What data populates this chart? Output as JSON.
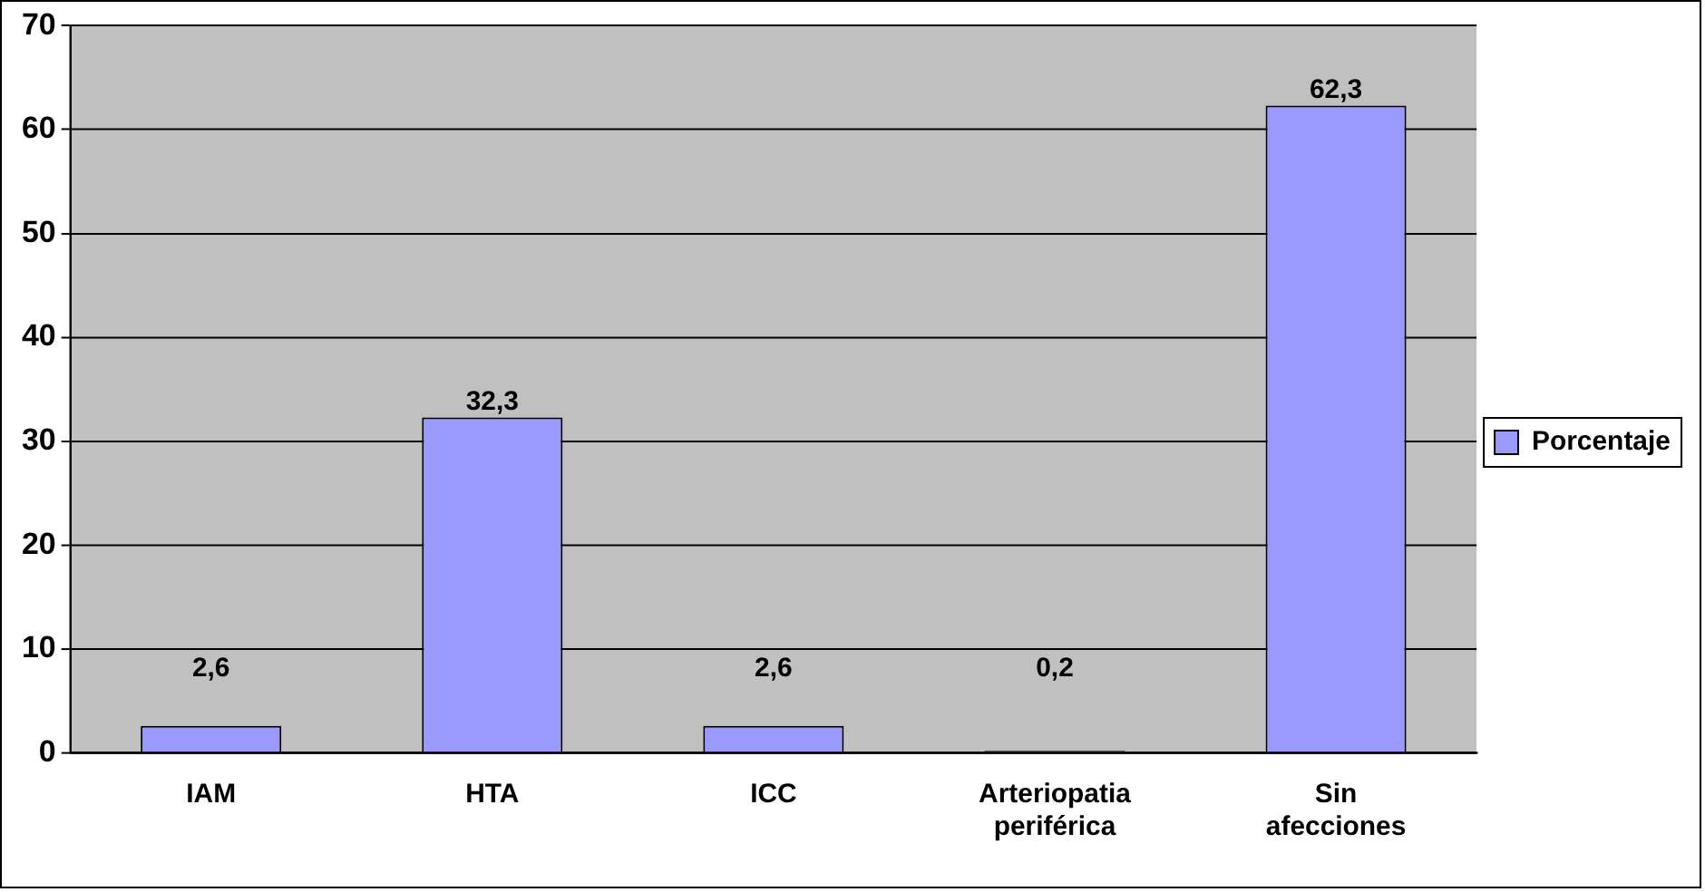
{
  "chart_data": {
    "type": "bar",
    "categories": [
      "IAM",
      "HTA",
      "ICC",
      "Arteriopatia periférica",
      "Sin afecciones"
    ],
    "series": [
      {
        "name": "Porcentaje",
        "color": "#9999ff",
        "values": [
          2.6,
          32.3,
          2.6,
          0.2,
          62.3
        ],
        "value_labels": [
          "2,6",
          "32,3",
          "2,6",
          "0,2",
          "62,3"
        ]
      }
    ],
    "ylim": [
      0,
      70
    ],
    "yticks": [
      0,
      10,
      20,
      30,
      40,
      50,
      60,
      70
    ],
    "grid": "y",
    "legend": "right"
  }
}
